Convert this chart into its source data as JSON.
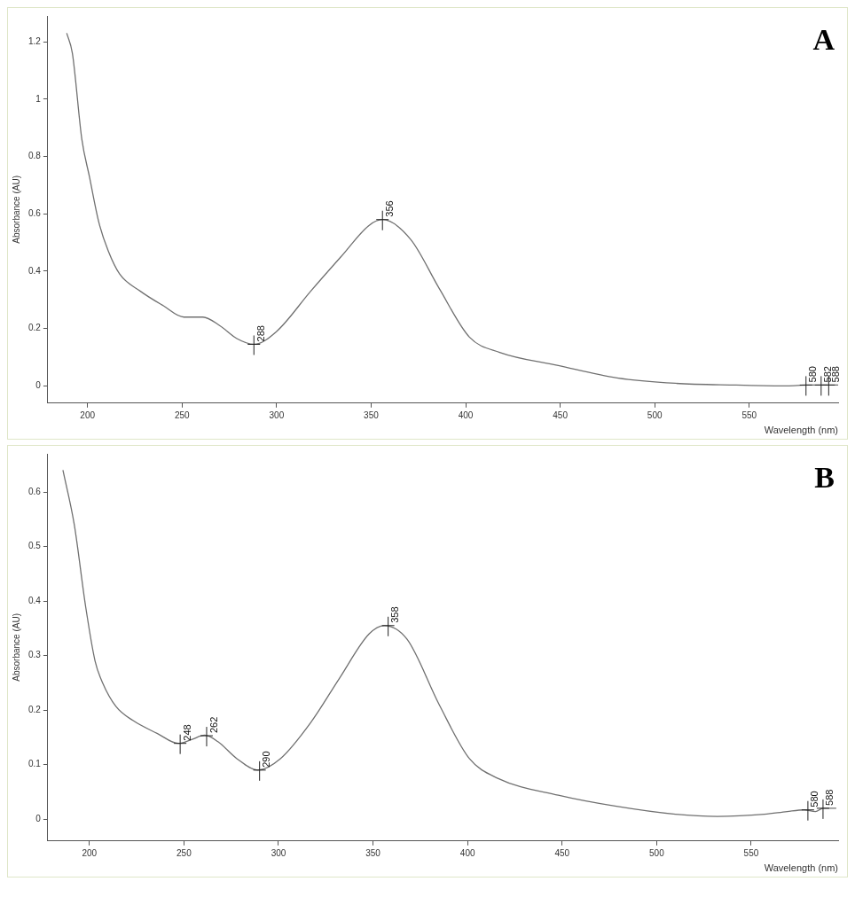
{
  "chart_data": [
    {
      "type": "line",
      "xlabel": "Wavelength (nm)",
      "ylabel": "Absorbance (AU)",
      "xlim": [
        179,
        597
      ],
      "xticks": [
        200,
        250,
        300,
        350,
        400,
        450,
        500,
        550
      ],
      "ylim": [
        -0.06,
        1.29
      ],
      "yticks": [
        0,
        0.2,
        0.4,
        0.6,
        0.8,
        1,
        1.2
      ],
      "grid": false,
      "legend": false,
      "series": [
        {
          "color": "#707070",
          "x": [
            189,
            192,
            197,
            201,
            206,
            211,
            217,
            228,
            240,
            251,
            261,
            270,
            279,
            288,
            300,
            318,
            334,
            349,
            356,
            371,
            386,
            402,
            418,
            449,
            480,
            511,
            543,
            570,
            581,
            597
          ],
          "values": [
            1.23,
            1.16,
            0.86,
            0.73,
            0.57,
            0.47,
            0.39,
            0.33,
            0.28,
            0.24,
            0.24,
            0.21,
            0.165,
            0.145,
            0.19,
            0.33,
            0.45,
            0.56,
            0.58,
            0.51,
            0.34,
            0.17,
            0.117,
            0.071,
            0.028,
            0.009,
            0.003,
            0,
            0.003,
            0.003
          ]
        }
      ],
      "annotations": [
        "A",
        {
          "text": "356",
          "x": 356,
          "y": 0.58
        },
        {
          "text": "288",
          "x": 288,
          "y": 0.145
        },
        {
          "text": "580",
          "x": 580,
          "y": 0.003
        },
        {
          "text": "582",
          "x": 588,
          "y": 0.003
        },
        {
          "text": "588",
          "x": 592,
          "y": 0.003
        }
      ]
    },
    {
      "type": "line",
      "xlabel": "Wavelength (nm)",
      "ylabel": "Absorbance (AU)",
      "xlim": [
        178,
        596
      ],
      "xticks": [
        200,
        250,
        300,
        350,
        400,
        450,
        500,
        550
      ],
      "ylim": [
        -0.04,
        0.67
      ],
      "yticks": [
        0,
        0.1,
        0.2,
        0.3,
        0.4,
        0.5,
        0.6
      ],
      "grid": false,
      "legend": false,
      "series": [
        {
          "color": "#707070",
          "x": [
            186,
            192,
            198,
            203,
            207,
            214,
            223,
            236,
            247,
            254,
            261,
            268,
            278,
            289,
            301,
            317,
            332,
            348,
            356,
            368,
            385,
            401,
            416,
            448,
            478,
            510,
            532,
            557,
            569,
            578,
            584,
            588,
            595
          ],
          "values": [
            0.64,
            0.54,
            0.39,
            0.29,
            0.25,
            0.207,
            0.181,
            0.157,
            0.139,
            0.146,
            0.154,
            0.142,
            0.111,
            0.09,
            0.111,
            0.177,
            0.257,
            0.34,
            0.355,
            0.33,
            0.21,
            0.111,
            0.075,
            0.044,
            0.024,
            0.009,
            0.005,
            0.009,
            0.014,
            0.017,
            0.014,
            0.02,
            0.02
          ]
        }
      ],
      "annotations": [
        "B",
        {
          "text": "248",
          "x": 248,
          "y": 0.139
        },
        {
          "text": "262",
          "x": 262,
          "y": 0.153
        },
        {
          "text": "290",
          "x": 290,
          "y": 0.09
        },
        {
          "text": "358",
          "x": 358,
          "y": 0.355
        },
        {
          "text": "580",
          "x": 580,
          "y": 0.017
        },
        {
          "text": "588",
          "x": 588,
          "y": 0.02
        }
      ]
    }
  ]
}
